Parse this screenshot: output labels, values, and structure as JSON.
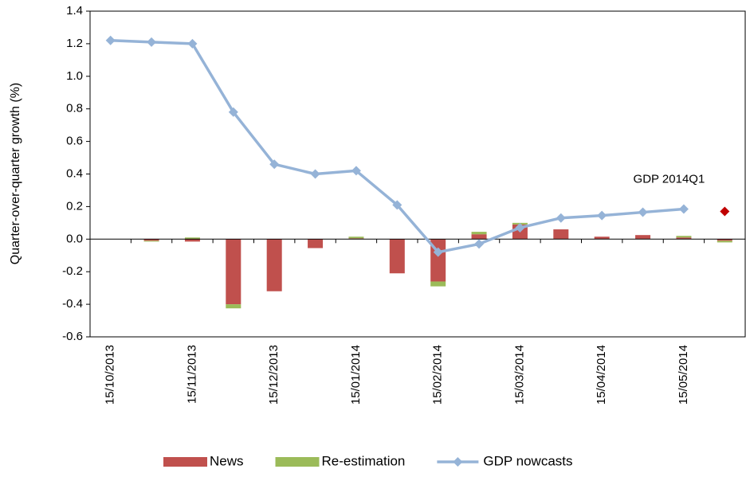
{
  "chart_data": {
    "type": "bar-line",
    "y_label": "Quarter-over-quarter growth (%)",
    "categories": [
      "15/10/2013",
      null,
      "15/11/2013",
      null,
      "15/12/2013",
      null,
      "15/01/2014",
      null,
      "15/02/2014",
      null,
      "15/03/2014",
      null,
      "15/04/2014",
      null,
      "15/05/2014",
      null
    ],
    "series": [
      {
        "name": "News",
        "type": "bar",
        "color": "#c0504d",
        "values": [
          0,
          -0.01,
          -0.015,
          -0.4,
          -0.32,
          -0.055,
          0.005,
          -0.21,
          -0.26,
          0.03,
          0.09,
          0.06,
          0.015,
          0.025,
          0.01,
          -0.01
        ]
      },
      {
        "name": "Re-estimation",
        "type": "bar",
        "color": "#9bbb59",
        "values": [
          0,
          -0.005,
          0.01,
          -0.025,
          0,
          0,
          0.01,
          0,
          -0.03,
          0.015,
          0.01,
          0,
          0,
          0,
          0.01,
          -0.01
        ]
      },
      {
        "name": "GDP nowcasts",
        "type": "line",
        "color": "#95b3d7",
        "values": [
          1.22,
          1.21,
          1.2,
          0.78,
          0.46,
          0.4,
          0.42,
          0.21,
          -0.08,
          -0.03,
          0.07,
          0.13,
          0.145,
          0.165,
          0.185,
          null
        ]
      }
    ],
    "annotation": {
      "text": "GDP 2014Q1",
      "value": 0.17,
      "color": "#c00000"
    },
    "ylim": [
      -0.6,
      1.4
    ],
    "yticks": [
      -0.6,
      -0.4,
      -0.2,
      {
        "value": 0,
        "label": "0.0"
      },
      0.2,
      0.4,
      0.6,
      0.8,
      {
        "value": 1,
        "label": "1.0"
      },
      1.2,
      1.4
    ]
  }
}
